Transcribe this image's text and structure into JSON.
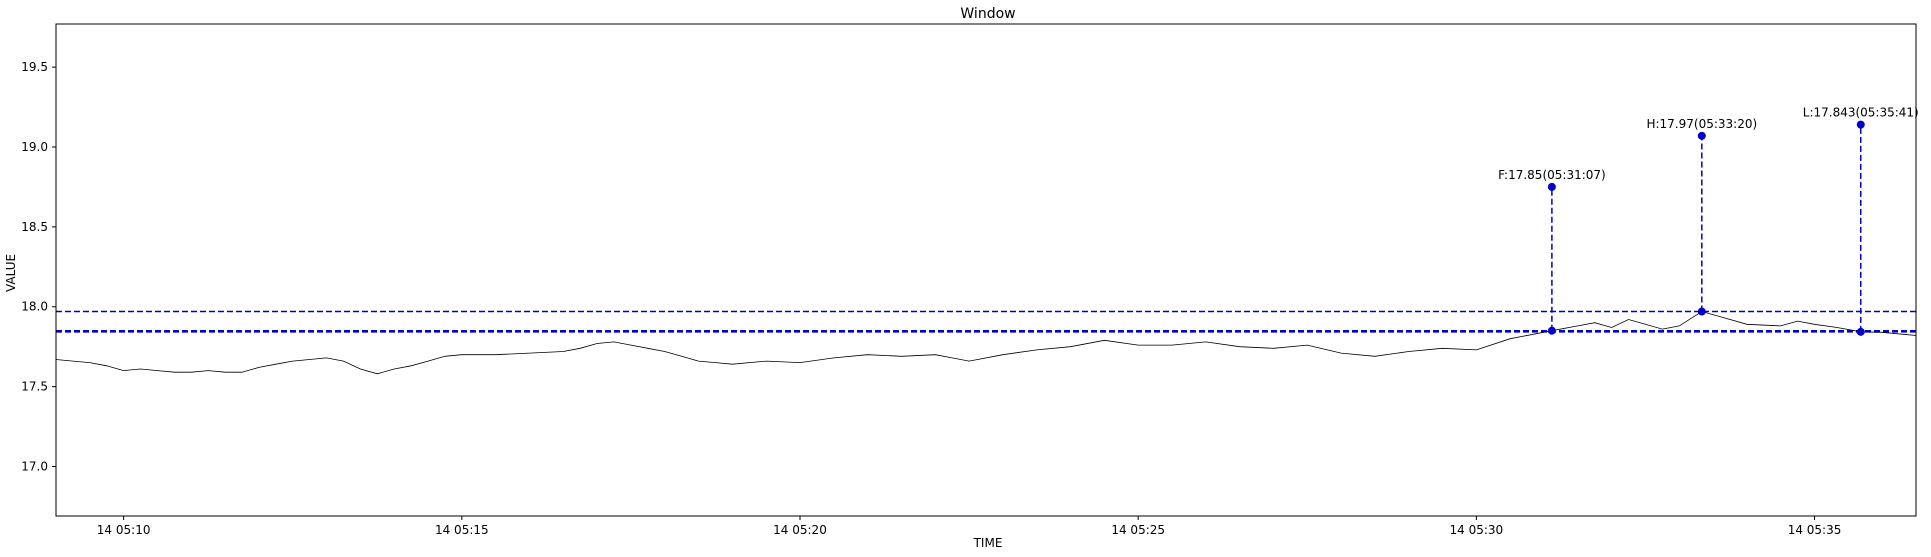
{
  "chart_data": {
    "type": "line",
    "title": "Window",
    "xlabel": "TIME",
    "ylabel": "VALUE",
    "xlim": [
      "2024-01-14T05:09:00",
      "2024-01-14T05:36:30"
    ],
    "ylim": [
      16.69,
      19.77
    ],
    "grid": false,
    "x_ticks": [
      {
        "t": "2024-01-14T05:10:00",
        "label": "14 05:10"
      },
      {
        "t": "2024-01-14T05:15:00",
        "label": "14 05:15"
      },
      {
        "t": "2024-01-14T05:20:00",
        "label": "14 05:20"
      },
      {
        "t": "2024-01-14T05:25:00",
        "label": "14 05:25"
      },
      {
        "t": "2024-01-14T05:30:00",
        "label": "14 05:30"
      },
      {
        "t": "2024-01-14T05:35:00",
        "label": "14 05:35"
      }
    ],
    "y_ticks": [
      {
        "v": 17.0,
        "label": "17.0"
      },
      {
        "v": 17.5,
        "label": "17.5"
      },
      {
        "v": 18.0,
        "label": "18.0"
      },
      {
        "v": 18.5,
        "label": "18.5"
      },
      {
        "v": 19.0,
        "label": "19.0"
      },
      {
        "v": 19.5,
        "label": "19.5"
      }
    ],
    "series": [
      {
        "color": "#000000",
        "points": [
          [
            "2024-01-14T05:09:00",
            17.67
          ],
          [
            "2024-01-14T05:09:15",
            17.66
          ],
          [
            "2024-01-14T05:09:30",
            17.65
          ],
          [
            "2024-01-14T05:09:45",
            17.63
          ],
          [
            "2024-01-14T05:10:00",
            17.6
          ],
          [
            "2024-01-14T05:10:15",
            17.61
          ],
          [
            "2024-01-14T05:10:30",
            17.6
          ],
          [
            "2024-01-14T05:10:45",
            17.59
          ],
          [
            "2024-01-14T05:11:00",
            17.59
          ],
          [
            "2024-01-14T05:11:15",
            17.6
          ],
          [
            "2024-01-14T05:11:30",
            17.59
          ],
          [
            "2024-01-14T05:11:45",
            17.59
          ],
          [
            "2024-01-14T05:12:00",
            17.62
          ],
          [
            "2024-01-14T05:12:15",
            17.64
          ],
          [
            "2024-01-14T05:12:30",
            17.66
          ],
          [
            "2024-01-14T05:12:45",
            17.67
          ],
          [
            "2024-01-14T05:13:00",
            17.68
          ],
          [
            "2024-01-14T05:13:15",
            17.66
          ],
          [
            "2024-01-14T05:13:30",
            17.61
          ],
          [
            "2024-01-14T05:13:45",
            17.58
          ],
          [
            "2024-01-14T05:14:00",
            17.61
          ],
          [
            "2024-01-14T05:14:15",
            17.63
          ],
          [
            "2024-01-14T05:14:30",
            17.66
          ],
          [
            "2024-01-14T05:14:45",
            17.69
          ],
          [
            "2024-01-14T05:15:00",
            17.7
          ],
          [
            "2024-01-14T05:15:30",
            17.7
          ],
          [
            "2024-01-14T05:16:00",
            17.71
          ],
          [
            "2024-01-14T05:16:30",
            17.72
          ],
          [
            "2024-01-14T05:16:45",
            17.74
          ],
          [
            "2024-01-14T05:17:00",
            17.77
          ],
          [
            "2024-01-14T05:17:15",
            17.78
          ],
          [
            "2024-01-14T05:17:30",
            17.76
          ],
          [
            "2024-01-14T05:17:45",
            17.74
          ],
          [
            "2024-01-14T05:18:00",
            17.72
          ],
          [
            "2024-01-14T05:18:15",
            17.69
          ],
          [
            "2024-01-14T05:18:30",
            17.66
          ],
          [
            "2024-01-14T05:18:45",
            17.65
          ],
          [
            "2024-01-14T05:19:00",
            17.64
          ],
          [
            "2024-01-14T05:19:30",
            17.66
          ],
          [
            "2024-01-14T05:20:00",
            17.65
          ],
          [
            "2024-01-14T05:20:30",
            17.68
          ],
          [
            "2024-01-14T05:21:00",
            17.7
          ],
          [
            "2024-01-14T05:21:30",
            17.69
          ],
          [
            "2024-01-14T05:22:00",
            17.7
          ],
          [
            "2024-01-14T05:22:15",
            17.68
          ],
          [
            "2024-01-14T05:22:30",
            17.66
          ],
          [
            "2024-01-14T05:23:00",
            17.7
          ],
          [
            "2024-01-14T05:23:30",
            17.73
          ],
          [
            "2024-01-14T05:24:00",
            17.75
          ],
          [
            "2024-01-14T05:24:30",
            17.79
          ],
          [
            "2024-01-14T05:25:00",
            17.76
          ],
          [
            "2024-01-14T05:25:30",
            17.76
          ],
          [
            "2024-01-14T05:26:00",
            17.78
          ],
          [
            "2024-01-14T05:26:30",
            17.75
          ],
          [
            "2024-01-14T05:27:00",
            17.74
          ],
          [
            "2024-01-14T05:27:30",
            17.76
          ],
          [
            "2024-01-14T05:28:00",
            17.71
          ],
          [
            "2024-01-14T05:28:30",
            17.69
          ],
          [
            "2024-01-14T05:29:00",
            17.72
          ],
          [
            "2024-01-14T05:29:30",
            17.74
          ],
          [
            "2024-01-14T05:30:00",
            17.73
          ],
          [
            "2024-01-14T05:30:30",
            17.8
          ],
          [
            "2024-01-14T05:31:07",
            17.85
          ],
          [
            "2024-01-14T05:31:30",
            17.88
          ],
          [
            "2024-01-14T05:31:45",
            17.9
          ],
          [
            "2024-01-14T05:32:00",
            17.87
          ],
          [
            "2024-01-14T05:32:15",
            17.92
          ],
          [
            "2024-01-14T05:32:30",
            17.89
          ],
          [
            "2024-01-14T05:32:45",
            17.86
          ],
          [
            "2024-01-14T05:33:00",
            17.88
          ],
          [
            "2024-01-14T05:33:20",
            17.97
          ],
          [
            "2024-01-14T05:33:40",
            17.93
          ],
          [
            "2024-01-14T05:34:00",
            17.89
          ],
          [
            "2024-01-14T05:34:30",
            17.88
          ],
          [
            "2024-01-14T05:34:45",
            17.91
          ],
          [
            "2024-01-14T05:35:00",
            17.89
          ],
          [
            "2024-01-14T05:35:20",
            17.87
          ],
          [
            "2024-01-14T05:35:41",
            17.843
          ],
          [
            "2024-01-14T05:36:00",
            17.84
          ],
          [
            "2024-01-14T05:36:30",
            17.82
          ]
        ]
      }
    ],
    "hlines": [
      {
        "y": 17.97,
        "color": "#0000cc",
        "style": "dashed"
      },
      {
        "y": 17.85,
        "color": "#0000cc",
        "style": "dashed"
      },
      {
        "y": 17.843,
        "color": "#0000cc",
        "style": "dashed"
      }
    ],
    "annotations": [
      {
        "t": "2024-01-14T05:31:07",
        "y": 17.85,
        "top": 18.75,
        "label": "F:17.85(05:31:07)"
      },
      {
        "t": "2024-01-14T05:33:20",
        "y": 17.97,
        "top": 19.07,
        "label": "H:17.97(05:33:20)"
      },
      {
        "t": "2024-01-14T05:35:41",
        "y": 17.843,
        "top": 19.14,
        "label": "L:17.843(05:35:41)"
      }
    ],
    "marker_color": "#0000cc"
  }
}
